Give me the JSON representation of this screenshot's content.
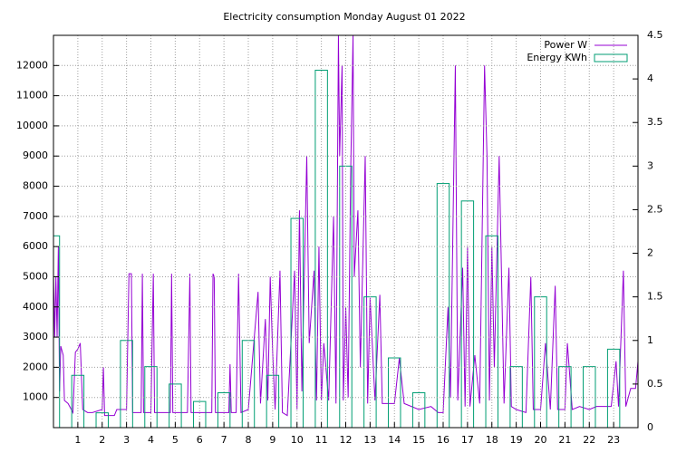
{
  "chart_data": {
    "type": "bar_line",
    "title": "Electricity consumption Monday August 01 2022",
    "xlim": [
      0,
      24
    ],
    "xticks": [
      1,
      2,
      3,
      4,
      5,
      6,
      7,
      8,
      9,
      10,
      11,
      12,
      13,
      14,
      15,
      16,
      17,
      18,
      19,
      20,
      21,
      22,
      23
    ],
    "ylim": [
      0,
      13000
    ],
    "yticks": [
      1000,
      2000,
      3000,
      4000,
      5000,
      6000,
      7000,
      8000,
      9000,
      10000,
      11000,
      12000
    ],
    "y2lim": [
      0,
      4.5
    ],
    "y2ticks": [
      0,
      0.5,
      1,
      1.5,
      2,
      2.5,
      3,
      3.5,
      4,
      4.5
    ],
    "grid": true,
    "legend": "top-right",
    "series": [
      {
        "name": "Power W",
        "color": "#9400d3",
        "type": "line",
        "x": [
          0,
          0.05,
          0.1,
          0.15,
          0.2,
          0.25,
          0.3,
          0.4,
          0.45,
          0.6,
          0.8,
          0.9,
          1,
          1.1,
          1.2,
          1.4,
          1.6,
          2,
          2.05,
          2.1,
          2.5,
          2.6,
          3,
          3.1,
          3.2,
          3.25,
          3.6,
          3.65,
          3.7,
          4,
          4.1,
          4.15,
          4.8,
          4.85,
          4.9,
          5.5,
          5.6,
          5.65,
          6.2,
          6.5,
          6.55,
          6.6,
          6.65,
          7.2,
          7.25,
          7.3,
          7.5,
          7.6,
          7.7,
          8,
          8.4,
          8.5,
          8.7,
          8.8,
          8.9,
          9,
          9.1,
          9.3,
          9.4,
          9.6,
          9.9,
          10,
          10.1,
          10.2,
          10.4,
          10.5,
          10.7,
          10.8,
          10.9,
          11,
          11.1,
          11.3,
          11.5,
          11.6,
          11.7,
          11.75,
          11.85,
          11.9,
          12,
          12.1,
          12.2,
          12.3,
          12.35,
          12.5,
          12.6,
          12.8,
          12.9,
          13,
          13.2,
          13.4,
          13.5,
          14,
          14.2,
          14.4,
          15,
          15.5,
          15.8,
          16,
          16.2,
          16.3,
          16.5,
          16.6,
          16.8,
          16.9,
          17,
          17.1,
          17.3,
          17.5,
          17.7,
          17.8,
          17.9,
          18,
          18.1,
          18.3,
          18.5,
          18.7,
          18.8,
          19,
          19.4,
          19.6,
          19.7,
          20,
          20.2,
          20.4,
          20.6,
          20.7,
          21,
          21.1,
          21.3,
          21.6,
          22,
          22.3,
          22.9,
          23.1,
          23.2,
          23.4,
          23.5,
          23.7,
          23.9,
          24
        ],
        "values": [
          5100,
          3000,
          5000,
          3000,
          6000,
          1200,
          2700,
          2400,
          900,
          800,
          500,
          2500,
          2600,
          2800,
          600,
          500,
          500,
          600,
          2000,
          400,
          400,
          600,
          600,
          5100,
          5100,
          500,
          500,
          5100,
          500,
          500,
          5100,
          500,
          500,
          5100,
          500,
          500,
          5100,
          500,
          500,
          500,
          5100,
          5000,
          500,
          500,
          2100,
          500,
          500,
          5100,
          500,
          600,
          4500,
          800,
          3600,
          900,
          5000,
          2500,
          600,
          5200,
          500,
          400,
          5200,
          600,
          7200,
          1200,
          9000,
          2800,
          5200,
          900,
          6000,
          900,
          2800,
          900,
          7000,
          800,
          13000,
          9000,
          12000,
          900,
          4000,
          1000,
          8300,
          13000,
          5000,
          7200,
          2000,
          9000,
          800,
          4300,
          900,
          4400,
          800,
          800,
          2300,
          800,
          600,
          700,
          500,
          500,
          4000,
          1000,
          12000,
          900,
          5300,
          700,
          6000,
          700,
          2400,
          800,
          12000,
          9000,
          900,
          6000,
          2000,
          9000,
          800,
          5300,
          700,
          600,
          500,
          5000,
          600,
          600,
          2800,
          600,
          4700,
          600,
          600,
          2800,
          600,
          700,
          600,
          700,
          700,
          2200,
          700,
          5200,
          700,
          1300,
          1300,
          2200
        ]
      },
      {
        "name": "Energy KWh",
        "color": "#009e73",
        "type": "bar",
        "axis": "y2",
        "x": [
          0,
          1,
          2,
          3,
          4,
          5,
          6,
          7,
          8,
          9,
          10,
          11,
          12,
          13,
          14,
          15,
          16,
          17,
          18,
          19,
          20,
          21,
          22,
          23
        ],
        "values": [
          2.2,
          0.6,
          0.17,
          1.0,
          0.7,
          0.5,
          0.3,
          0.4,
          1.0,
          0.6,
          2.4,
          4.1,
          3.0,
          1.5,
          0.8,
          0.4,
          2.8,
          2.6,
          2.2,
          0.7,
          1.5,
          0.7,
          0.7,
          0.9
        ]
      }
    ]
  }
}
